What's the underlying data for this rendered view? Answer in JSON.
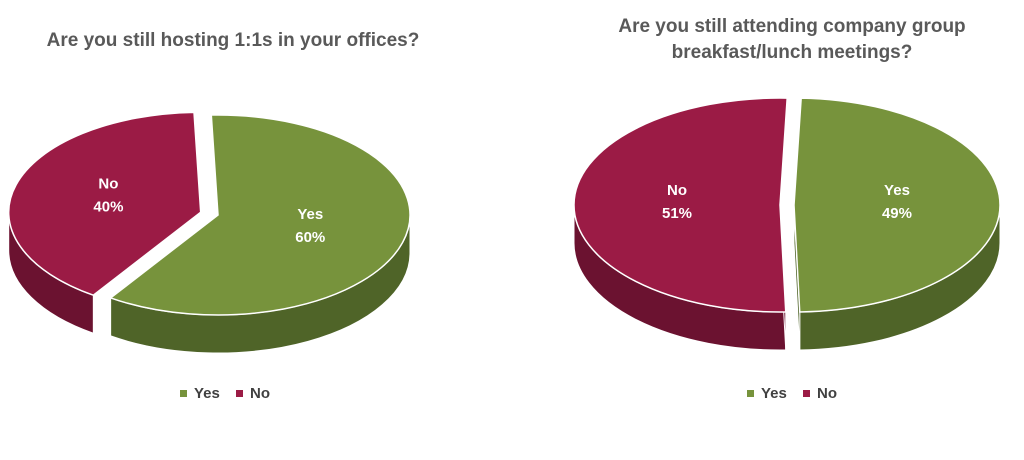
{
  "colors": {
    "yes": "#77933c",
    "yes_side": "#4f6428",
    "no": "#9b1b45",
    "no_side": "#6b1230",
    "title": "#595959",
    "slice_label": "#ffffff"
  },
  "chart_data": [
    {
      "type": "pie",
      "title": "Are you still hosting 1:1s in your offices?",
      "title_lines": [
        "Are you still hosting 1:1s in your offices?"
      ],
      "slices": [
        {
          "name": "Yes",
          "value": 60,
          "label": "Yes",
          "pct_label": "60%",
          "exploded": false
        },
        {
          "name": "No",
          "value": 40,
          "label": "No",
          "pct_label": "40%",
          "exploded": true
        }
      ],
      "legend": [
        {
          "name": "Yes"
        },
        {
          "name": "No"
        }
      ],
      "legend_position": "bottom"
    },
    {
      "type": "pie",
      "title": "Are you still attending company group breakfast/lunch meetings?",
      "title_lines": [
        "Are you still attending company group",
        "breakfast/lunch meetings?"
      ],
      "slices": [
        {
          "name": "Yes",
          "value": 49,
          "label": "Yes",
          "pct_label": "49%",
          "exploded": true
        },
        {
          "name": "No",
          "value": 51,
          "label": "No",
          "pct_label": "51%",
          "exploded": false
        }
      ],
      "legend": [
        {
          "name": "Yes"
        },
        {
          "name": "No"
        }
      ],
      "legend_position": "bottom"
    }
  ]
}
